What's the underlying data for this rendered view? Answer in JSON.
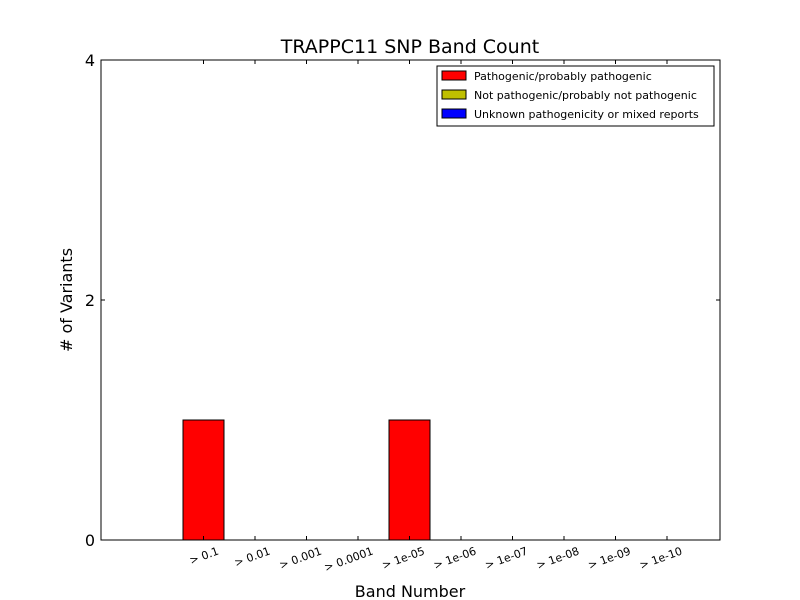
{
  "chart_data": {
    "type": "bar",
    "title": "TRAPPC11 SNP Band Count",
    "xlabel": "Band Number",
    "ylabel": "# of Variants",
    "categories": [
      "> 0.1",
      "> 0.01",
      "> 0.001",
      "> 0.0001",
      "> 1e-05",
      "> 1e-06",
      "> 1e-07",
      "> 1e-08",
      "> 1e-09",
      "> 1e-10"
    ],
    "series": [
      {
        "name": "Pathogenic/probably pathogenic",
        "color": "#ff0000",
        "values": [
          1,
          0,
          0,
          0,
          1,
          0,
          0,
          0,
          0,
          0
        ]
      },
      {
        "name": "Not pathogenic/probably not pathogenic",
        "color": "#bfbf00",
        "values": [
          0,
          0,
          0,
          0,
          0,
          0,
          0,
          0,
          0,
          0
        ]
      },
      {
        "name": "Unknown pathogenicity or mixed reports",
        "color": "#0000ff",
        "values": [
          0,
          0,
          0,
          0,
          0,
          0,
          0,
          0,
          0,
          0
        ]
      }
    ],
    "yticks": [
      "0",
      "2",
      "4"
    ],
    "ylim": [
      0,
      4
    ],
    "stacked": true,
    "legend_position": "top-right",
    "grid": false
  }
}
